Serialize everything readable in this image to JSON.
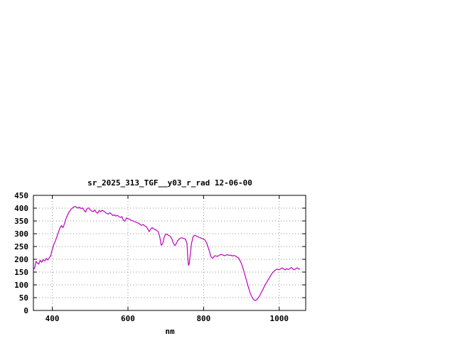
{
  "window": {
    "background": "#ffffff"
  },
  "chart_data": {
    "type": "line",
    "title": "sr_2025_313_TGF__y03_r_rad 12-06-00",
    "xlabel": "nm",
    "ylabel": "",
    "xlim": [
      350,
      1070
    ],
    "ylim": [
      0,
      450
    ],
    "x_ticks": [
      400,
      600,
      800,
      1000
    ],
    "y_ticks": [
      0,
      50,
      100,
      150,
      200,
      250,
      300,
      350,
      400,
      450
    ],
    "grid": true,
    "legend": "none",
    "line_color": "#bf00bf",
    "axis_color": "#000000",
    "grid_color": "#909090",
    "series": [
      {
        "x": [
          350,
          354,
          357,
          360,
          364,
          368,
          372,
          376,
          380,
          384,
          388,
          392,
          396,
          400,
          404,
          408,
          412,
          416,
          420,
          424,
          428,
          432,
          436,
          440,
          444,
          448,
          452,
          456,
          460,
          464,
          468,
          472,
          476,
          480,
          484,
          488,
          492,
          496,
          500,
          504,
          508,
          512,
          516,
          520,
          524,
          528,
          532,
          536,
          540,
          544,
          548,
          552,
          556,
          560,
          564,
          568,
          572,
          576,
          580,
          584,
          588,
          592,
          596,
          600,
          604,
          608,
          612,
          616,
          620,
          624,
          628,
          632,
          636,
          640,
          644,
          648,
          652,
          656,
          660,
          664,
          668,
          672,
          676,
          680,
          684,
          688,
          692,
          696,
          700,
          704,
          708,
          712,
          716,
          720,
          724,
          728,
          732,
          736,
          740,
          744,
          748,
          752,
          756,
          758,
          760,
          762,
          764,
          768,
          772,
          776,
          780,
          784,
          788,
          792,
          796,
          800,
          804,
          808,
          812,
          816,
          820,
          824,
          828,
          832,
          836,
          840,
          844,
          848,
          852,
          856,
          860,
          864,
          868,
          872,
          876,
          880,
          884,
          888,
          892,
          896,
          900,
          904,
          908,
          912,
          916,
          920,
          924,
          928,
          932,
          936,
          940,
          944,
          948,
          952,
          956,
          960,
          964,
          968,
          972,
          976,
          980,
          984,
          988,
          992,
          996,
          1000,
          1004,
          1008,
          1012,
          1016,
          1020,
          1024,
          1028,
          1032,
          1036,
          1040,
          1044,
          1048,
          1052,
          1055
        ],
        "y": [
          158,
          170,
          192,
          186,
          181,
          196,
          188,
          199,
          193,
          204,
          197,
          206,
          215,
          240,
          258,
          272,
          288,
          305,
          322,
          332,
          324,
          338,
          358,
          372,
          384,
          393,
          399,
          404,
          407,
          404,
          400,
          404,
          398,
          401,
          391,
          385,
          399,
          401,
          394,
          389,
          386,
          393,
          384,
          380,
          391,
          386,
          392,
          388,
          384,
          379,
          377,
          382,
          377,
          371,
          374,
          369,
          372,
          367,
          364,
          367,
          352,
          349,
          362,
          359,
          357,
          353,
          351,
          348,
          346,
          343,
          341,
          337,
          333,
          336,
          331,
          328,
          320,
          308,
          318,
          324,
          319,
          316,
          313,
          308,
          288,
          255,
          262,
          288,
          299,
          297,
          293,
          290,
          280,
          264,
          254,
          262,
          274,
          280,
          284,
          283,
          281,
          279,
          262,
          215,
          176,
          182,
          210,
          262,
          288,
          294,
          292,
          289,
          286,
          284,
          281,
          279,
          275,
          264,
          247,
          228,
          209,
          204,
          212,
          214,
          211,
          215,
          218,
          219,
          216,
          214,
          217,
          218,
          215,
          216,
          213,
          215,
          213,
          209,
          206,
          196,
          183,
          166,
          146,
          124,
          103,
          83,
          65,
          52,
          43,
          39,
          41,
          48,
          57,
          68,
          80,
          92,
          103,
          113,
          123,
          133,
          143,
          150,
          156,
          160,
          161,
          159,
          163,
          166,
          162,
          159,
          163,
          160,
          164,
          168,
          162,
          159,
          164,
          167,
          161,
          163
        ]
      }
    ]
  }
}
